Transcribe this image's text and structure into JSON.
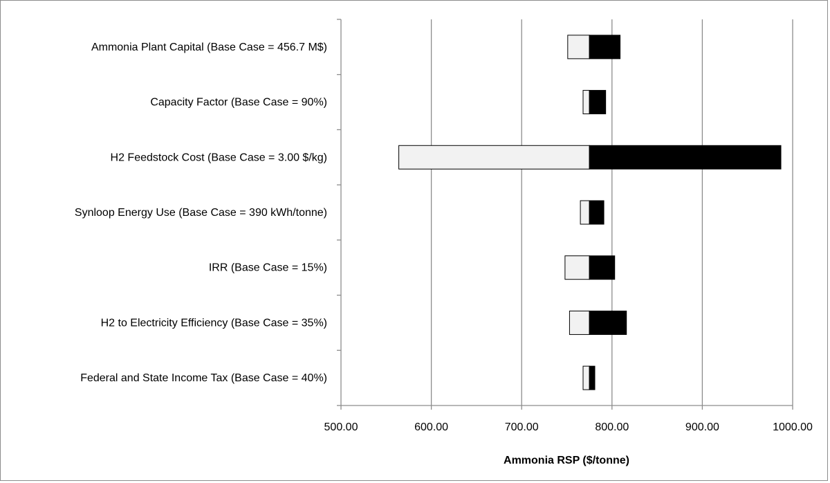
{
  "chart_data": {
    "type": "bar",
    "orientation": "horizontal",
    "subtype": "tornado",
    "title": "",
    "xlabel": "Ammonia RSP ($/tonne)",
    "ylabel": "",
    "xlim": [
      500,
      1000
    ],
    "xticks": [
      "500.00",
      "600.00",
      "700.00",
      "800.00",
      "900.00",
      "1000.00"
    ],
    "xtick_values": [
      500,
      600,
      700,
      800,
      900,
      1000
    ],
    "grid": "vertical",
    "legend": "none",
    "base_value": 775,
    "categories": [
      "Ammonia Plant Capital (Base Case = 456.7 M$)",
      "Capacity Factor (Base Case = 90%)",
      "H2 Feedstock Cost (Base Case = 3.00 $/kg)",
      "Synloop Energy Use (Base Case = 390 kWh/tonne)",
      "IRR (Base Case = 15%)",
      "H2 to Electricity Efficiency (Base Case = 35%)",
      "Federal and State Income Tax (Base Case = 40%)"
    ],
    "series": [
      {
        "values": [
          751,
          768,
          564,
          765,
          748,
          753,
          768
        ]
      },
      {
        "values": [
          809,
          793,
          987,
          791,
          803,
          816,
          781
        ]
      }
    ],
    "colors": {
      "low": "#f2f2f2",
      "high": "#000000",
      "grid": "#8c8c8c",
      "axis": "#8c8c8c",
      "bar_edge": "#000000"
    }
  }
}
